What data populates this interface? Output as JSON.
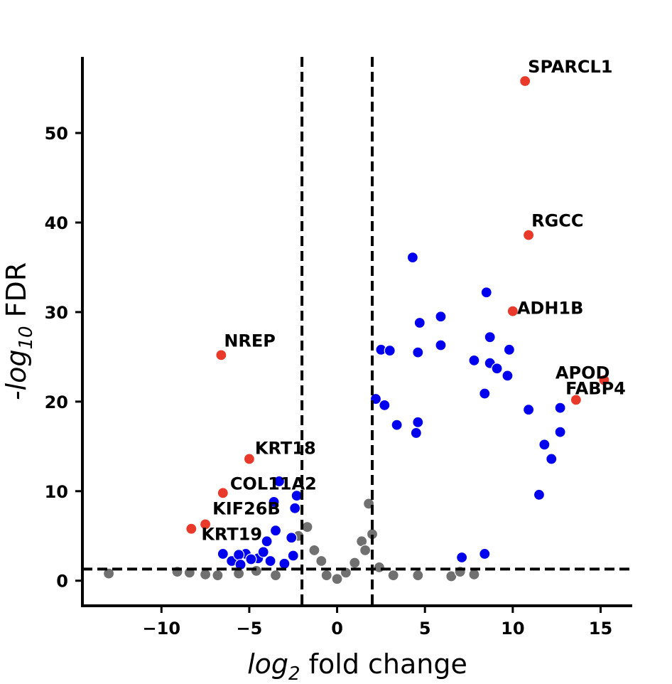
{
  "chart_data": {
    "type": "scatter",
    "title": "",
    "xlabel": {
      "prefix": "log",
      "sub": "2",
      "suffix": " fold change"
    },
    "ylabel": {
      "prefix": "-log",
      "sub": "10",
      "suffix": " FDR"
    },
    "xlim": [
      -14.5,
      16.8
    ],
    "ylim": [
      -2.8,
      58.5
    ],
    "x_ticks": [
      -10,
      -5,
      0,
      5,
      10,
      15
    ],
    "x_tick_labels": [
      "−10",
      "−5",
      "0",
      "5",
      "10",
      "15"
    ],
    "y_ticks": [
      0,
      10,
      20,
      30,
      40,
      50
    ],
    "y_tick_labels": [
      "0",
      "10",
      "20",
      "30",
      "40",
      "50"
    ],
    "thresholds": {
      "log2fc": [
        -2,
        2
      ],
      "neg_log10_fdr": 1.3
    },
    "colors": {
      "significant": "#0000ee",
      "nonsignificant": "#707070",
      "highlighted": "#e8392a"
    },
    "highlighted_genes": [
      {
        "label": "SPARCL1",
        "x": 10.7,
        "y": 55.8
      },
      {
        "label": "RGCC",
        "x": 10.9,
        "y": 38.6
      },
      {
        "label": "ADH1B",
        "x": 10.0,
        "y": 30.1
      },
      {
        "label": "APOD",
        "x": 15.2,
        "y": 22.4
      },
      {
        "label": "FABP4",
        "x": 13.6,
        "y": 20.2
      },
      {
        "label": "NREP",
        "x": -6.6,
        "y": 25.2
      },
      {
        "label": "KRT18",
        "x": -5.0,
        "y": 13.6
      },
      {
        "label": "COL11A2",
        "x": -6.5,
        "y": 9.8
      },
      {
        "label": "KIF26B",
        "x": -7.5,
        "y": 6.3
      },
      {
        "label": "KRT19",
        "x": -8.3,
        "y": 5.8
      }
    ],
    "significant_points": [
      [
        4.3,
        36.1
      ],
      [
        8.5,
        32.2
      ],
      [
        5.9,
        29.5
      ],
      [
        4.7,
        28.8
      ],
      [
        8.7,
        27.2
      ],
      [
        5.9,
        26.3
      ],
      [
        2.5,
        25.8
      ],
      [
        3.0,
        25.7
      ],
      [
        4.6,
        25.5
      ],
      [
        9.8,
        25.8
      ],
      [
        7.8,
        24.6
      ],
      [
        8.7,
        24.3
      ],
      [
        9.1,
        23.7
      ],
      [
        9.7,
        22.9
      ],
      [
        8.4,
        20.9
      ],
      [
        2.2,
        20.3
      ],
      [
        2.7,
        19.6
      ],
      [
        10.9,
        19.1
      ],
      [
        12.7,
        19.3
      ],
      [
        12.7,
        16.6
      ],
      [
        3.4,
        17.4
      ],
      [
        4.6,
        17.7
      ],
      [
        4.5,
        16.5
      ],
      [
        11.8,
        15.2
      ],
      [
        12.2,
        13.6
      ],
      [
        11.5,
        9.6
      ],
      [
        8.4,
        3.0
      ],
      [
        7.1,
        2.6
      ],
      [
        -5.2,
        3.0
      ],
      [
        -4.5,
        2.5
      ],
      [
        -3.8,
        2.2
      ],
      [
        -3.0,
        1.9
      ],
      [
        -2.5,
        2.8
      ],
      [
        -6.0,
        2.2
      ],
      [
        -6.5,
        3.0
      ],
      [
        -5.6,
        2.9
      ],
      [
        -4.0,
        4.4
      ],
      [
        -3.5,
        5.6
      ],
      [
        -2.6,
        4.8
      ],
      [
        -2.4,
        8.1
      ],
      [
        -3.3,
        11.1
      ],
      [
        -2.3,
        9.5
      ],
      [
        -3.6,
        8.8
      ],
      [
        -4.9,
        2.4
      ],
      [
        -5.5,
        1.8
      ],
      [
        -4.2,
        3.2
      ]
    ],
    "nonsignificant_points": [
      [
        -13.0,
        0.8
      ],
      [
        -9.1,
        1.0
      ],
      [
        -8.4,
        0.9
      ],
      [
        -7.5,
        0.7
      ],
      [
        -6.8,
        0.6
      ],
      [
        -5.6,
        0.8
      ],
      [
        -4.6,
        1.1
      ],
      [
        -3.5,
        0.6
      ],
      [
        -2.2,
        5.0
      ],
      [
        -1.7,
        6.0
      ],
      [
        -1.3,
        3.4
      ],
      [
        -0.9,
        2.2
      ],
      [
        -0.6,
        0.6
      ],
      [
        0.0,
        0.2
      ],
      [
        0.5,
        0.9
      ],
      [
        1.0,
        2.0
      ],
      [
        1.4,
        4.4
      ],
      [
        1.8,
        8.6
      ],
      [
        2.0,
        5.2
      ],
      [
        1.6,
        3.4
      ],
      [
        2.4,
        1.5
      ],
      [
        3.2,
        0.6
      ],
      [
        4.6,
        0.6
      ],
      [
        6.5,
        0.5
      ],
      [
        7.0,
        1.0
      ],
      [
        7.8,
        0.7
      ]
    ]
  }
}
